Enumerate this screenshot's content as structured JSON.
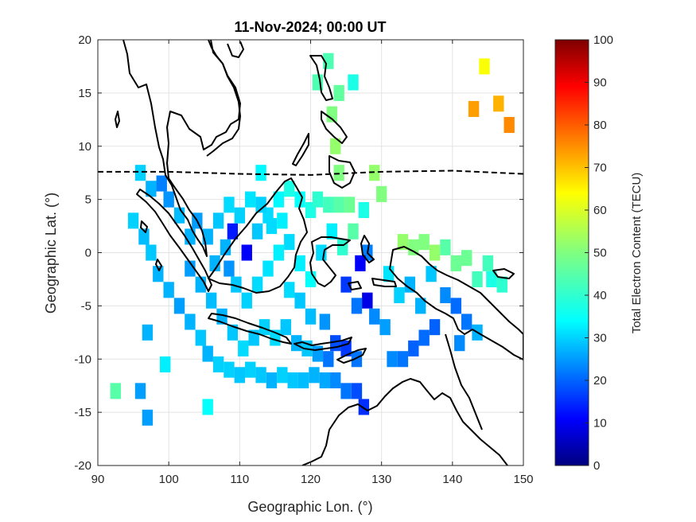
{
  "title": "11-Nov-2024; 00:00 UT",
  "xlabel": "Geographic Lon. (°)",
  "ylabel": "Geographic Lat. (°)",
  "colorbar_label": "Total Electron Content (TECU)",
  "colorbar_ticks": [
    "0",
    "10",
    "20",
    "30",
    "40",
    "50",
    "60",
    "70",
    "80",
    "90",
    "100"
  ],
  "chart_data": {
    "type": "heatmap",
    "xlim": [
      90,
      150
    ],
    "ylim": [
      -20,
      20
    ],
    "xticks": [
      90,
      100,
      110,
      120,
      130,
      140,
      150
    ],
    "yticks": [
      20,
      15,
      10,
      5,
      0,
      -5,
      -10,
      -15,
      -20
    ],
    "colorbar_range": [
      0,
      100
    ],
    "grid": true,
    "cell_size_deg": 1.5,
    "magnetic_equator": [
      [
        90,
        7.6
      ],
      [
        100,
        7.6
      ],
      [
        110,
        7.4
      ],
      [
        120,
        7.3
      ],
      [
        130,
        7.6
      ],
      [
        140,
        7.7
      ],
      [
        150,
        7.4
      ]
    ],
    "cells": [
      [
        122.5,
        18,
        45
      ],
      [
        121,
        16,
        45
      ],
      [
        124,
        15,
        47
      ],
      [
        126,
        16,
        40
      ],
      [
        123,
        13,
        50
      ],
      [
        123.5,
        10,
        52
      ],
      [
        124,
        7.5,
        50
      ],
      [
        129,
        7.5,
        52
      ],
      [
        130,
        5.5,
        50
      ],
      [
        144.5,
        17.5,
        62
      ],
      [
        143,
        13.5,
        72
      ],
      [
        146.5,
        14,
        70
      ],
      [
        148,
        12,
        74
      ],
      [
        96,
        7.5,
        33
      ],
      [
        97.5,
        6,
        30
      ],
      [
        99,
        6.5,
        25
      ],
      [
        100,
        5,
        27
      ],
      [
        101.5,
        3.5,
        31
      ],
      [
        103,
        1.5,
        30
      ],
      [
        95,
        3,
        33
      ],
      [
        96.5,
        1.5,
        31
      ],
      [
        97.5,
        0,
        32
      ],
      [
        98.5,
        -2,
        30
      ],
      [
        100,
        -3.5,
        30
      ],
      [
        101.5,
        -5,
        28
      ],
      [
        103,
        -6.5,
        30
      ],
      [
        104.5,
        -8,
        32
      ],
      [
        105.5,
        -9.5,
        30
      ],
      [
        107,
        -10.5,
        33
      ],
      [
        108.5,
        -11,
        33
      ],
      [
        110,
        -11.5,
        32
      ],
      [
        111.5,
        -11,
        33
      ],
      [
        113,
        -11.5,
        32
      ],
      [
        114.5,
        -12,
        30
      ],
      [
        116,
        -11.5,
        33
      ],
      [
        117.5,
        -12,
        32
      ],
      [
        119,
        -12,
        31
      ],
      [
        120.5,
        -11.5,
        30
      ],
      [
        122,
        -12,
        29
      ],
      [
        123.5,
        -12,
        26
      ],
      [
        125,
        -13,
        24
      ],
      [
        126.5,
        -13,
        20
      ],
      [
        127.5,
        -14.5,
        17
      ],
      [
        99.5,
        -10.5,
        36
      ],
      [
        97,
        -7.5,
        30
      ],
      [
        96,
        -13,
        28
      ],
      [
        97,
        -15.5,
        28
      ],
      [
        92.5,
        -13,
        46
      ],
      [
        105.5,
        -14.5,
        38
      ],
      [
        108.5,
        -1.5,
        27
      ],
      [
        109,
        2,
        15
      ],
      [
        111,
        0,
        12
      ],
      [
        112.5,
        2,
        32
      ],
      [
        114,
        3.5,
        34
      ],
      [
        115.5,
        5,
        37
      ],
      [
        117,
        6,
        40
      ],
      [
        118.5,
        5,
        38
      ],
      [
        120,
        4,
        40
      ],
      [
        121,
        5,
        42
      ],
      [
        122.5,
        4.5,
        44
      ],
      [
        124,
        4.5,
        46
      ],
      [
        125.5,
        4.5,
        48
      ],
      [
        113,
        7.5,
        37
      ],
      [
        117,
        1,
        34
      ],
      [
        118.5,
        -1,
        36
      ],
      [
        120,
        -2.5,
        38
      ],
      [
        121.5,
        0,
        34
      ],
      [
        123,
        2,
        36
      ],
      [
        124.5,
        0.5,
        42
      ],
      [
        126,
        2,
        46
      ],
      [
        127.5,
        4,
        40
      ],
      [
        128,
        0,
        25
      ],
      [
        127,
        -1,
        12
      ],
      [
        125,
        -3,
        18
      ],
      [
        126.5,
        -5,
        24
      ],
      [
        128,
        -4.5,
        10
      ],
      [
        129,
        -6,
        26
      ],
      [
        130.5,
        -7,
        28
      ],
      [
        122,
        -6.5,
        27
      ],
      [
        123.5,
        -8.5,
        20
      ],
      [
        125,
        -9,
        18
      ],
      [
        126.5,
        -10,
        24
      ],
      [
        131.5,
        -10,
        26
      ],
      [
        133,
        -10,
        24
      ],
      [
        134.5,
        -9,
        22
      ],
      [
        136,
        -8,
        23
      ],
      [
        137.5,
        -7,
        22
      ],
      [
        131,
        -2,
        35
      ],
      [
        132.5,
        -4,
        33
      ],
      [
        134,
        -3,
        30
      ],
      [
        135.5,
        -5,
        30
      ],
      [
        137,
        -2,
        32
      ],
      [
        139,
        -4,
        26
      ],
      [
        140.5,
        -5,
        23
      ],
      [
        142,
        -6.5,
        24
      ],
      [
        143.5,
        -7.5,
        30
      ],
      [
        141,
        -8.5,
        26
      ],
      [
        133,
        1,
        52
      ],
      [
        134.5,
        0.5,
        50
      ],
      [
        136,
        1,
        50
      ],
      [
        137.5,
        0,
        52
      ],
      [
        139,
        0.5,
        46
      ],
      [
        140.5,
        -1,
        48
      ],
      [
        142,
        -0.5,
        48
      ],
      [
        143.5,
        -2.5,
        44
      ],
      [
        145,
        -1,
        44
      ],
      [
        145.5,
        -2.5,
        40
      ],
      [
        147,
        -3,
        42
      ],
      [
        103,
        -1.5,
        28
      ],
      [
        104.5,
        -3,
        30
      ],
      [
        106,
        -4.5,
        31
      ],
      [
        107.5,
        -6,
        30
      ],
      [
        109,
        -7.5,
        32
      ],
      [
        110.5,
        -9,
        34
      ],
      [
        112,
        -8,
        32
      ],
      [
        113.5,
        -7,
        33
      ],
      [
        115,
        -8,
        34
      ],
      [
        116.5,
        -7,
        32
      ],
      [
        118,
        -8.5,
        30
      ],
      [
        119.5,
        -9,
        32
      ],
      [
        121,
        -9.5,
        28
      ],
      [
        122.5,
        -10,
        24
      ],
      [
        106.5,
        -1,
        30
      ],
      [
        108,
        0.5,
        30
      ],
      [
        109.5,
        -3,
        32
      ],
      [
        111,
        -4.5,
        33
      ],
      [
        112.5,
        -3,
        34
      ],
      [
        114,
        -1.5,
        35
      ],
      [
        115.5,
        0,
        36
      ],
      [
        117,
        -3.5,
        34
      ],
      [
        118.5,
        -4.5,
        32
      ],
      [
        120,
        -6,
        31
      ],
      [
        104,
        3,
        28
      ],
      [
        105.5,
        1.5,
        30
      ],
      [
        107,
        3,
        32
      ],
      [
        108.5,
        4.5,
        34
      ],
      [
        110,
        3.5,
        33
      ],
      [
        111.5,
        5,
        35
      ],
      [
        113,
        4.5,
        33
      ],
      [
        114.5,
        2.5,
        34
      ],
      [
        116,
        3,
        36
      ]
    ]
  }
}
